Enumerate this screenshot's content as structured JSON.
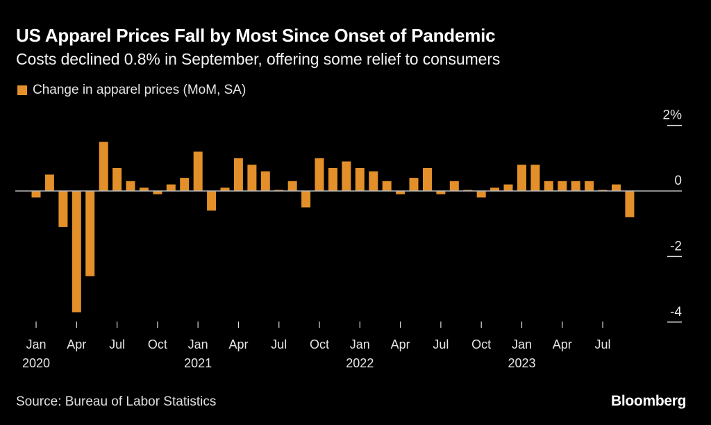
{
  "header": {
    "title": "US Apparel Prices Fall by Most Since Onset of Pandemic",
    "subtitle": "Costs declined 0.8% in September, offering some relief to consumers"
  },
  "footer": {
    "source": "Source: Bureau of Labor Statistics",
    "brand": "Bloomberg"
  },
  "colors": {
    "bar": "#e3902a",
    "background": "#000000",
    "zero_line": "#bbbbbb",
    "text": "#ffffff"
  },
  "chart_data": {
    "type": "bar",
    "title": "US Apparel Prices Fall by Most Since Onset of Pandemic",
    "subtitle": "Costs declined 0.8% in September, offering some relief to consumers",
    "xlabel": "",
    "ylabel": "",
    "legend": {
      "position": "top-left",
      "entries": [
        "Change in apparel prices (MoM, SA)"
      ]
    },
    "ylim": [
      -4.5,
      2
    ],
    "y_ticks": [
      {
        "value": 2,
        "label": "2%"
      },
      {
        "value": 0,
        "label": "0"
      },
      {
        "value": -2,
        "label": "-2"
      },
      {
        "value": -4,
        "label": "-4"
      }
    ],
    "y_axis_side": "right",
    "grid": false,
    "x_ticks": [
      {
        "index": 0,
        "month": "Jan",
        "year": "2020"
      },
      {
        "index": 3,
        "month": "Apr",
        "year": ""
      },
      {
        "index": 6,
        "month": "Jul",
        "year": ""
      },
      {
        "index": 9,
        "month": "Oct",
        "year": ""
      },
      {
        "index": 12,
        "month": "Jan",
        "year": "2021"
      },
      {
        "index": 15,
        "month": "Apr",
        "year": ""
      },
      {
        "index": 18,
        "month": "Jul",
        "year": ""
      },
      {
        "index": 21,
        "month": "Oct",
        "year": ""
      },
      {
        "index": 24,
        "month": "Jan",
        "year": "2022"
      },
      {
        "index": 27,
        "month": "Apr",
        "year": ""
      },
      {
        "index": 30,
        "month": "Jul",
        "year": ""
      },
      {
        "index": 33,
        "month": "Oct",
        "year": ""
      },
      {
        "index": 36,
        "month": "Jan",
        "year": "2023"
      },
      {
        "index": 39,
        "month": "Apr",
        "year": ""
      },
      {
        "index": 42,
        "month": "Jul",
        "year": ""
      }
    ],
    "categories": [
      "2020-01",
      "2020-02",
      "2020-03",
      "2020-04",
      "2020-05",
      "2020-06",
      "2020-07",
      "2020-08",
      "2020-09",
      "2020-10",
      "2020-11",
      "2020-12",
      "2021-01",
      "2021-02",
      "2021-03",
      "2021-04",
      "2021-05",
      "2021-06",
      "2021-07",
      "2021-08",
      "2021-09",
      "2021-10",
      "2021-11",
      "2021-12",
      "2022-01",
      "2022-02",
      "2022-03",
      "2022-04",
      "2022-05",
      "2022-06",
      "2022-07",
      "2022-08",
      "2022-09",
      "2022-10",
      "2022-11",
      "2022-12",
      "2023-01",
      "2023-02",
      "2023-03",
      "2023-04",
      "2023-05",
      "2023-06",
      "2023-07",
      "2023-08",
      "2023-09"
    ],
    "series": [
      {
        "name": "Change in apparel prices (MoM, SA)",
        "values": [
          -0.2,
          0.5,
          -1.1,
          -3.7,
          -2.6,
          1.5,
          0.7,
          0.3,
          0.1,
          -0.1,
          0.2,
          0.4,
          1.2,
          -0.6,
          0.1,
          1.0,
          0.8,
          0.6,
          0.0,
          0.3,
          -0.5,
          1.0,
          0.7,
          0.9,
          0.7,
          0.6,
          0.3,
          -0.1,
          0.4,
          0.7,
          -0.1,
          0.3,
          0.0,
          -0.2,
          0.1,
          0.2,
          0.8,
          0.8,
          0.3,
          0.3,
          0.3,
          0.3,
          0.0,
          0.2,
          -0.8
        ]
      }
    ]
  }
}
